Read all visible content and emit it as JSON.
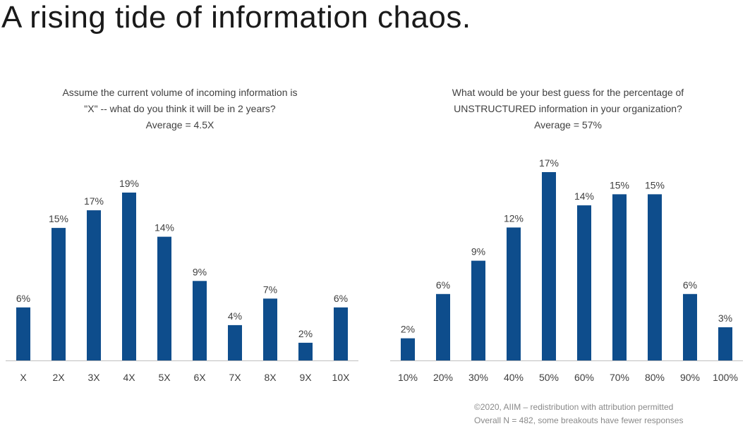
{
  "slide": {
    "title": "A rising tide of information chaos."
  },
  "colors": {
    "bar": "#0e4d8c",
    "label": "#404040",
    "axis": "#bfbfbf"
  },
  "chart_data": [
    {
      "type": "bar",
      "title_lines": [
        "Assume the current volume of incoming information is",
        "\"X\" -- what do you think it will be in 2 years?",
        "Average = 4.5X"
      ],
      "categories": [
        "X",
        "2X",
        "3X",
        "4X",
        "5X",
        "6X",
        "7X",
        "8X",
        "9X",
        "10X"
      ],
      "values": [
        6,
        15,
        17,
        19,
        14,
        9,
        4,
        7,
        2,
        6
      ],
      "value_labels": [
        "6%",
        "15%",
        "17%",
        "19%",
        "14%",
        "9%",
        "4%",
        "7%",
        "2%",
        "6%"
      ],
      "unit": "%",
      "ylim": [
        0,
        19
      ],
      "grid": false,
      "legend": "none"
    },
    {
      "type": "bar",
      "title_lines": [
        "What would be your best guess for the percentage of",
        "UNSTRUCTURED information in your organization?",
        "Average = 57%"
      ],
      "categories": [
        "10%",
        "20%",
        "30%",
        "40%",
        "50%",
        "60%",
        "70%",
        "80%",
        "90%",
        "100%"
      ],
      "values": [
        2,
        6,
        9,
        12,
        17,
        14,
        15,
        15,
        6,
        3
      ],
      "value_labels": [
        "2%",
        "6%",
        "9%",
        "12%",
        "17%",
        "14%",
        "15%",
        "15%",
        "6%",
        "3%"
      ],
      "unit": "%",
      "ylim": [
        0,
        17
      ],
      "grid": false,
      "legend": "none"
    }
  ],
  "footnote": {
    "line1": "©2020, AIIM – redistribution with attribution permitted",
    "line2": "Overall N = 482, some breakouts have fewer responses"
  }
}
